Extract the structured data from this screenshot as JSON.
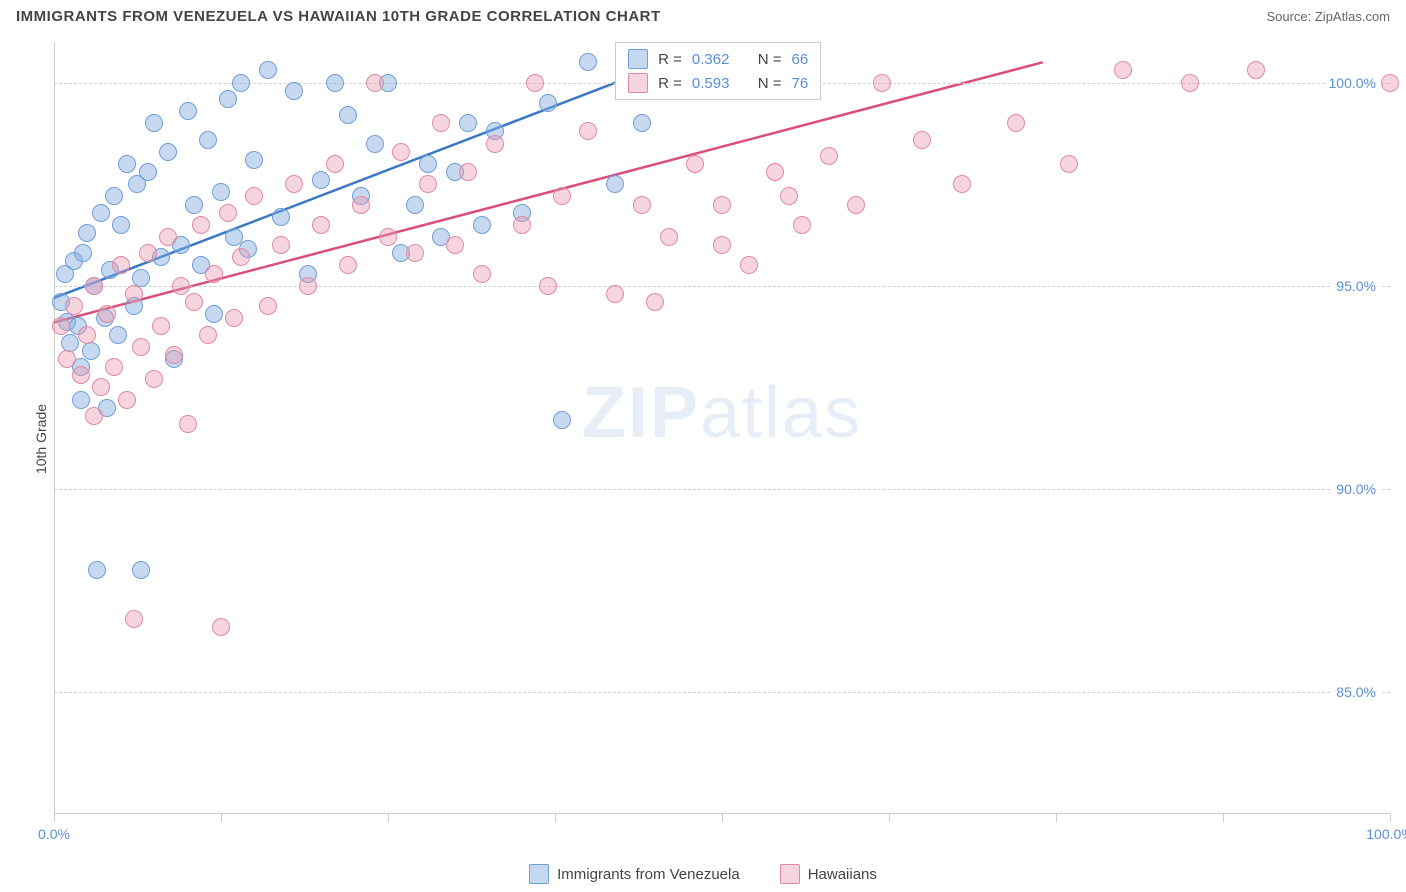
{
  "header": {
    "title": "IMMIGRANTS FROM VENEZUELA VS HAWAIIAN 10TH GRADE CORRELATION CHART",
    "source": "Source: ZipAtlas.com"
  },
  "ylabel": "10th Grade",
  "watermark": {
    "bold": "ZIP",
    "rest": "atlas"
  },
  "chart": {
    "type": "scatter",
    "xlim": [
      0,
      100
    ],
    "ylim": [
      82,
      101
    ],
    "xtick_positions": [
      0,
      12.5,
      25,
      37.5,
      50,
      62.5,
      75,
      87.5,
      100
    ],
    "xtick_labels": {
      "0": "0.0%",
      "100": "100.0%"
    },
    "ytick_positions": [
      85,
      90,
      95,
      100
    ],
    "ytick_labels": {
      "85": "85.0%",
      "90": "90.0%",
      "95": "95.0%",
      "100": "100.0%"
    },
    "background_color": "#ffffff",
    "grid_color": "#d0d0d0",
    "point_radius": 9,
    "series": [
      {
        "name": "Immigrants from Venezuela",
        "fill": "rgba(128,170,225,0.45)",
        "stroke": "#6f9fd8",
        "trend_color": "#3b78c4",
        "trend": {
          "x1": 0,
          "y1": 94.7,
          "x2": 46,
          "y2": 100.5
        },
        "R": "0.362",
        "N": "66",
        "points": [
          [
            0.5,
            94.6
          ],
          [
            0.8,
            95.3
          ],
          [
            1.0,
            94.1
          ],
          [
            1.2,
            93.6
          ],
          [
            1.5,
            95.6
          ],
          [
            1.8,
            94.0
          ],
          [
            2.0,
            93.0
          ],
          [
            2.2,
            95.8
          ],
          [
            2.5,
            96.3
          ],
          [
            2.8,
            93.4
          ],
          [
            3.0,
            95.0
          ],
          [
            3.2,
            88.0
          ],
          [
            3.5,
            96.8
          ],
          [
            3.8,
            94.2
          ],
          [
            4.0,
            92.0
          ],
          [
            4.2,
            95.4
          ],
          [
            4.5,
            97.2
          ],
          [
            4.8,
            93.8
          ],
          [
            5.0,
            96.5
          ],
          [
            5.5,
            98.0
          ],
          [
            6.0,
            94.5
          ],
          [
            6.2,
            97.5
          ],
          [
            6.5,
            95.2
          ],
          [
            7.0,
            97.8
          ],
          [
            7.5,
            99.0
          ],
          [
            8.0,
            95.7
          ],
          [
            8.5,
            98.3
          ],
          [
            9.0,
            93.2
          ],
          [
            9.5,
            96.0
          ],
          [
            10.0,
            99.3
          ],
          [
            10.5,
            97.0
          ],
          [
            11.0,
            95.5
          ],
          [
            11.5,
            98.6
          ],
          [
            12.0,
            94.3
          ],
          [
            12.5,
            97.3
          ],
          [
            13.0,
            99.6
          ],
          [
            13.5,
            96.2
          ],
          [
            14.0,
            100.0
          ],
          [
            14.5,
            95.9
          ],
          [
            15.0,
            98.1
          ],
          [
            16.0,
            100.3
          ],
          [
            17.0,
            96.7
          ],
          [
            18.0,
            99.8
          ],
          [
            19.0,
            95.3
          ],
          [
            20.0,
            97.6
          ],
          [
            21.0,
            100.0
          ],
          [
            22.0,
            99.2
          ],
          [
            23.0,
            97.2
          ],
          [
            24.0,
            98.5
          ],
          [
            25.0,
            100.0
          ],
          [
            26.0,
            95.8
          ],
          [
            27.0,
            97.0
          ],
          [
            28.0,
            98.0
          ],
          [
            29.0,
            96.2
          ],
          [
            30.0,
            97.8
          ],
          [
            31.0,
            99.0
          ],
          [
            32.0,
            96.5
          ],
          [
            33.0,
            98.8
          ],
          [
            35.0,
            96.8
          ],
          [
            37.0,
            99.5
          ],
          [
            38.0,
            91.7
          ],
          [
            40.0,
            100.5
          ],
          [
            42.0,
            97.5
          ],
          [
            44.0,
            99.0
          ],
          [
            6.5,
            88.0
          ],
          [
            2.0,
            92.2
          ]
        ]
      },
      {
        "name": "Hawaiians",
        "fill": "rgba(235,150,175,0.40)",
        "stroke": "#e08aa5",
        "trend_color": "#d94f7a",
        "trend": {
          "x1": 0,
          "y1": 94.1,
          "x2": 74,
          "y2": 100.5
        },
        "R": "0.593",
        "N": "76",
        "points": [
          [
            0.5,
            94.0
          ],
          [
            1.0,
            93.2
          ],
          [
            1.5,
            94.5
          ],
          [
            2.0,
            92.8
          ],
          [
            2.5,
            93.8
          ],
          [
            3.0,
            95.0
          ],
          [
            3.5,
            92.5
          ],
          [
            4.0,
            94.3
          ],
          [
            4.5,
            93.0
          ],
          [
            5.0,
            95.5
          ],
          [
            5.5,
            92.2
          ],
          [
            6.0,
            94.8
          ],
          [
            6.5,
            93.5
          ],
          [
            7.0,
            95.8
          ],
          [
            7.5,
            92.7
          ],
          [
            8.0,
            94.0
          ],
          [
            8.5,
            96.2
          ],
          [
            9.0,
            93.3
          ],
          [
            9.5,
            95.0
          ],
          [
            10.0,
            91.6
          ],
          [
            10.5,
            94.6
          ],
          [
            11.0,
            96.5
          ],
          [
            11.5,
            93.8
          ],
          [
            12.0,
            95.3
          ],
          [
            12.5,
            86.6
          ],
          [
            13.0,
            96.8
          ],
          [
            13.5,
            94.2
          ],
          [
            14.0,
            95.7
          ],
          [
            15.0,
            97.2
          ],
          [
            16.0,
            94.5
          ],
          [
            17.0,
            96.0
          ],
          [
            18.0,
            97.5
          ],
          [
            19.0,
            95.0
          ],
          [
            20.0,
            96.5
          ],
          [
            21.0,
            98.0
          ],
          [
            22.0,
            95.5
          ],
          [
            23.0,
            97.0
          ],
          [
            24.0,
            100.0
          ],
          [
            25.0,
            96.2
          ],
          [
            26.0,
            98.3
          ],
          [
            27.0,
            95.8
          ],
          [
            28.0,
            97.5
          ],
          [
            29.0,
            99.0
          ],
          [
            30.0,
            96.0
          ],
          [
            31.0,
            97.8
          ],
          [
            32.0,
            95.3
          ],
          [
            33.0,
            98.5
          ],
          [
            35.0,
            96.5
          ],
          [
            36.0,
            100.0
          ],
          [
            37.0,
            95.0
          ],
          [
            38.0,
            97.2
          ],
          [
            40.0,
            98.8
          ],
          [
            42.0,
            94.8
          ],
          [
            44.0,
            97.0
          ],
          [
            46.0,
            96.2
          ],
          [
            48.0,
            98.0
          ],
          [
            50.0,
            97.0
          ],
          [
            52.0,
            95.5
          ],
          [
            54.0,
            97.8
          ],
          [
            56.0,
            96.5
          ],
          [
            58.0,
            98.2
          ],
          [
            60.0,
            97.0
          ],
          [
            62.0,
            100.0
          ],
          [
            65.0,
            98.6
          ],
          [
            68.0,
            97.5
          ],
          [
            72.0,
            99.0
          ],
          [
            76.0,
            98.0
          ],
          [
            80.0,
            100.3
          ],
          [
            85.0,
            100.0
          ],
          [
            90.0,
            100.3
          ],
          [
            100.0,
            100.0
          ],
          [
            6.0,
            86.8
          ],
          [
            3.0,
            91.8
          ],
          [
            45.0,
            94.6
          ],
          [
            50.0,
            96.0
          ],
          [
            55.0,
            97.2
          ]
        ]
      }
    ]
  },
  "legend_top": {
    "r_label": "R =",
    "n_label": "N ="
  },
  "bottom_legend": {
    "items": [
      "Immigrants from Venezuela",
      "Hawaiians"
    ]
  }
}
